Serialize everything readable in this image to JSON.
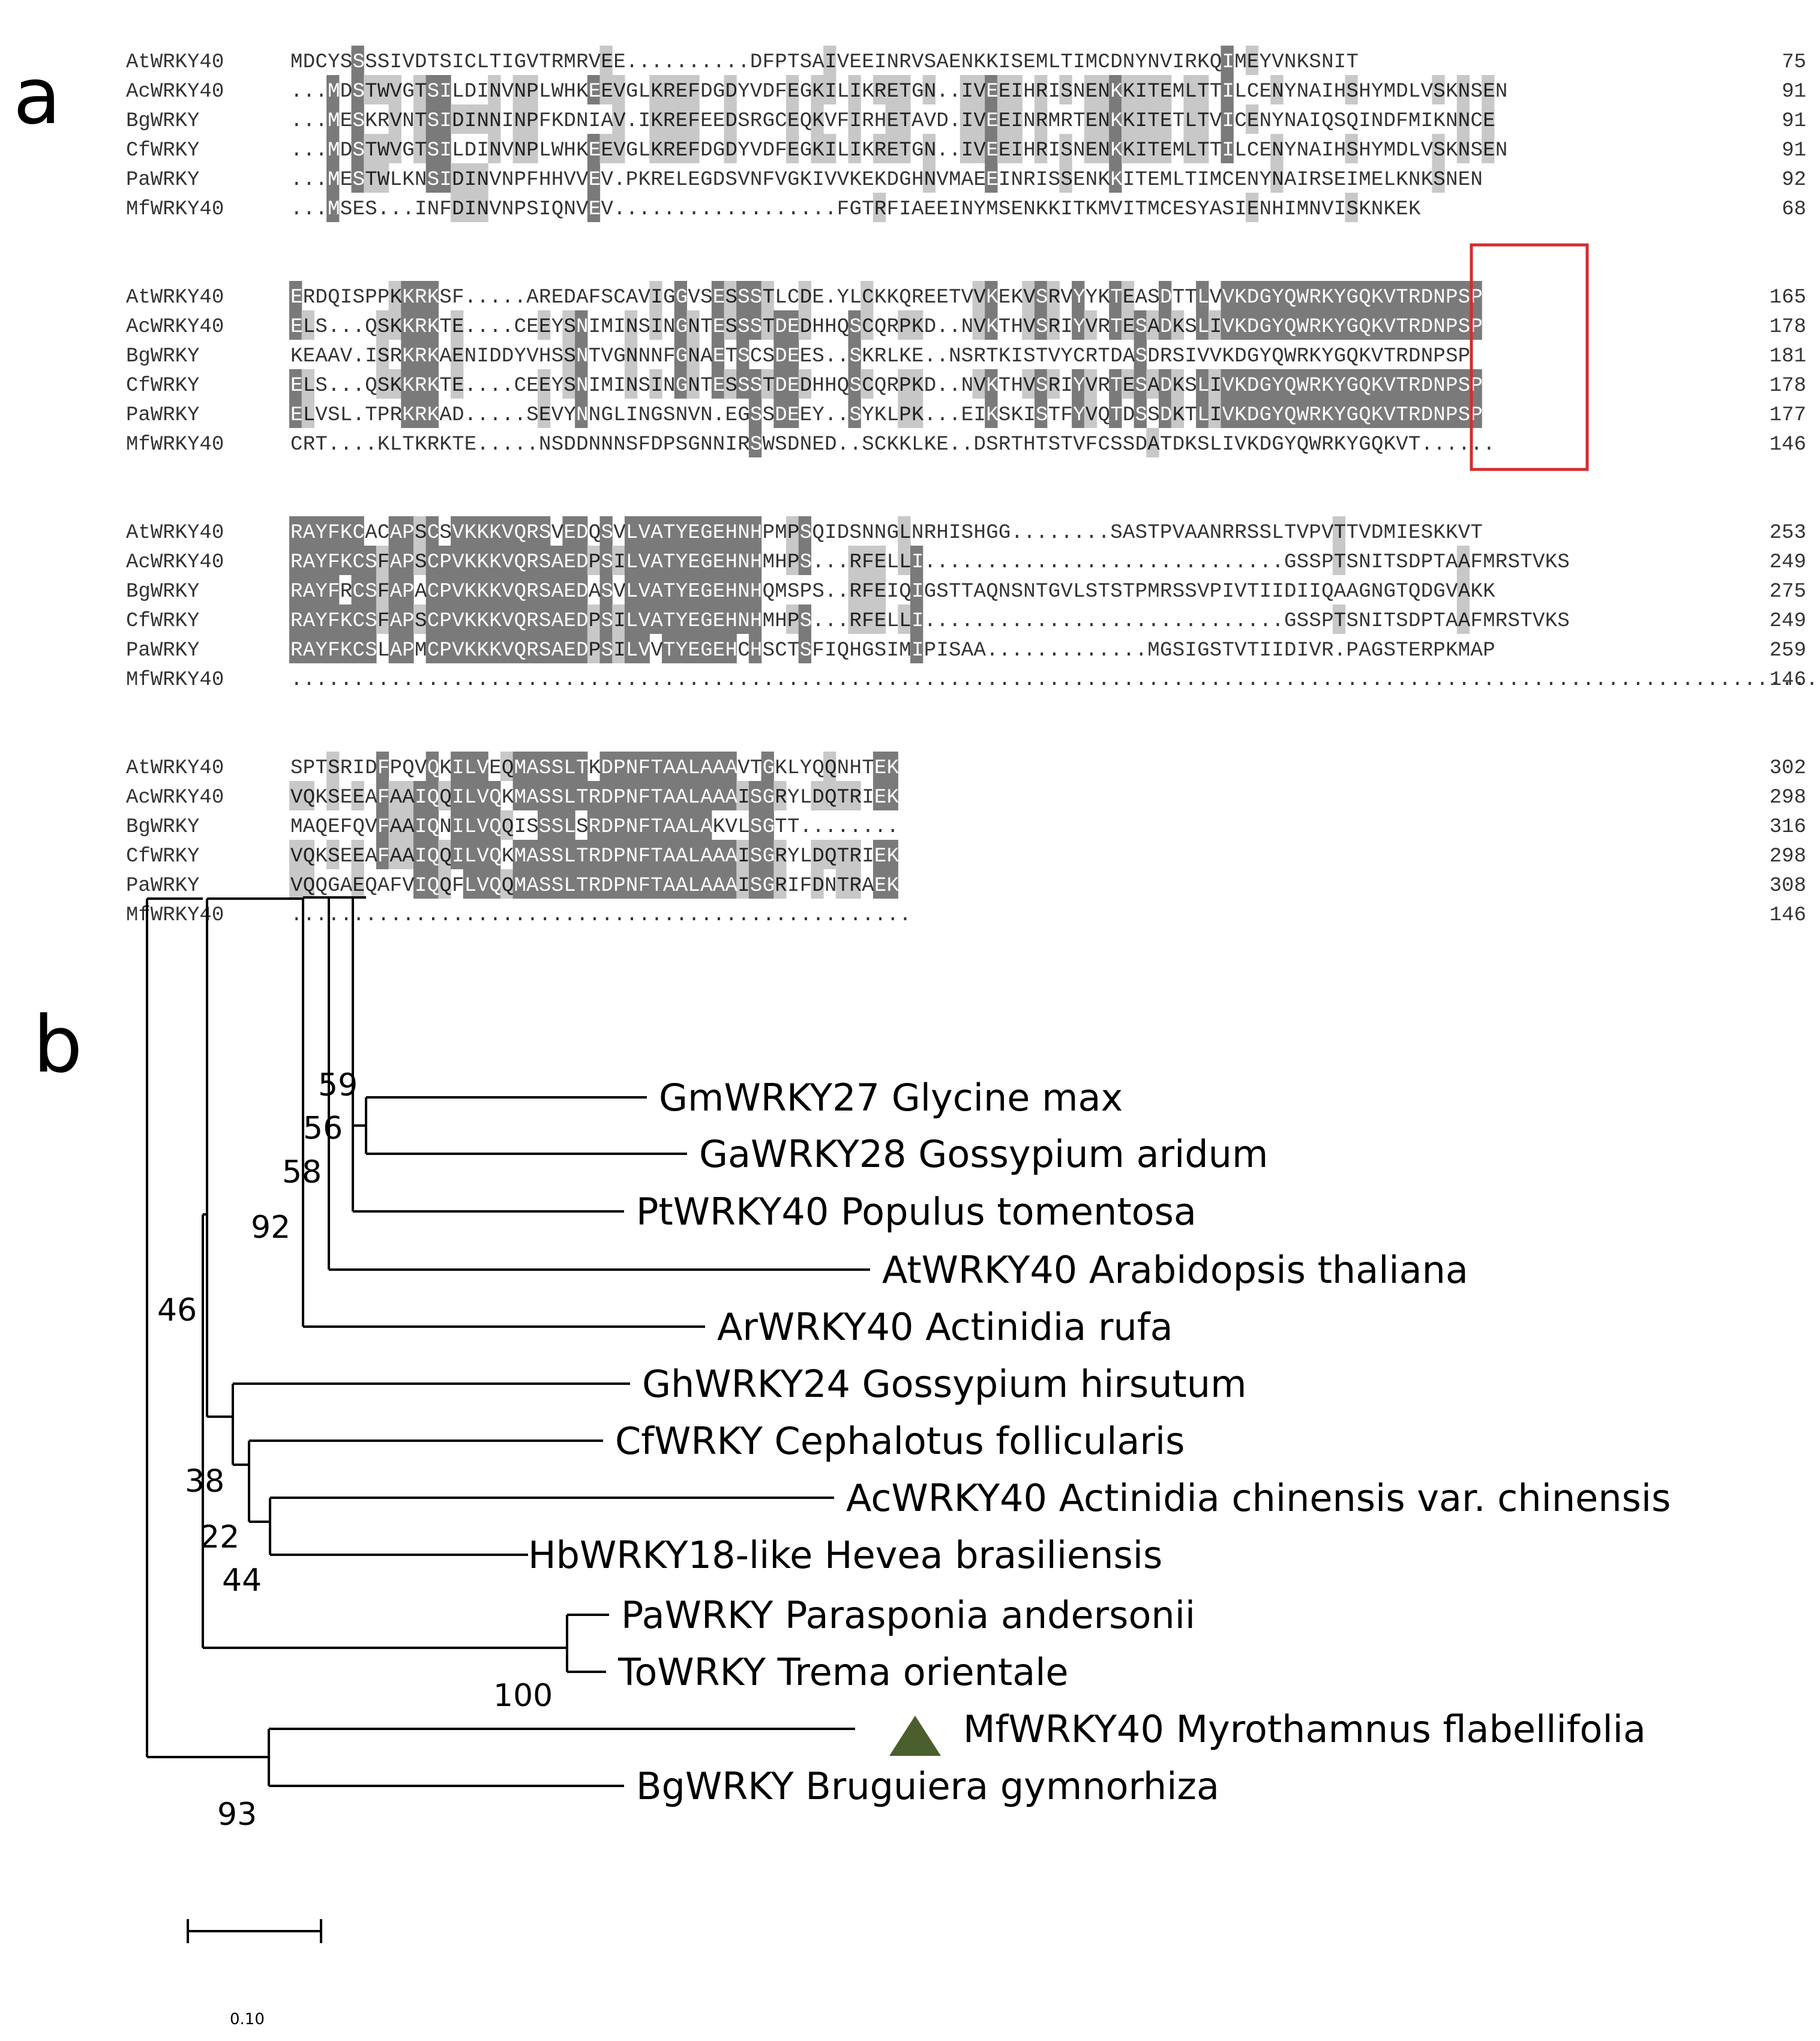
{
  "panel_a": {
    "label": "a",
    "blocks": [
      {
        "rows": [
          {
            "name": "AtWRKY40",
            "seq": "MDCYSSSSIVDTSICLTIGVTRMRVEE..........DFPTSAIVEEINRVSAENKKISEMLTIMCDNYNVIRKQIMEYVNKSNIT",
            "num": "75"
          },
          {
            "name": "AcWRKY40",
            "seq": "...MDSTWVGTSILDINVNPLWHKEEVGLKREFDGDYVDFEGKILIKRETGN..IVEEIHRISNENKKITEMLTTILCENYNAIHSHYMDLVSKNSEN",
            "num": "91"
          },
          {
            "name": "BgWRKY",
            "seq": "...MESKRVNTSIDINNINPFKDNIAV.IKREFEEDSRGCEQKVFIRHETAVD.IVEEINRMRTENKKITETLTVICENYNAIQSQINDFMIKNNCE",
            "num": "91"
          },
          {
            "name": "CfWRKY",
            "seq": "...MDSTWVGTSILDINVNPLWHKEEVGLKREFDGDYVDFEGKILIKRETGN..IVEEIHRISNENKKITEMLTTILCENYNAIHSHYMDLVSKNSEN",
            "num": "91"
          },
          {
            "name": "PaWRKY",
            "seq": "...MESTWLKNSIDINVNPFHHVVEV.PKRELEGDSVNFVGKIVVKEKDGHNVMAEEINRISSENKKITEMLTIMCENYNAIRSEIMELKNKSNEN",
            "num": "92"
          },
          {
            "name": "MfWRKY40",
            "seq": "...MSES...INFDINVNPSIQNVEV..................FGTRFIAEEINYMSENKKITKMVITMCESYASIENHIMNVISKNKEK",
            "num": "68"
          }
        ]
      },
      {
        "rows": [
          {
            "name": "AtWRKY40",
            "seq": "ERDQISPPKKRKSF.....AREDAFSCAVIGGVSESSSTLCDE.YLCKKQREETVVKEKVSRVYYKTEASDTTLVVKDGYQWRKYGQKVTRDNPSP",
            "num": "165"
          },
          {
            "name": "AcWRKY40",
            "seq": "ELS...QSKKRKTE....CEEYSNIMINSINGNTESSSTDEDHHQSCQRPKD..NVKTHVSRIYVRTESADKSLIVKDGYQWRKYGQKVTRDNPSP",
            "num": "178"
          },
          {
            "name": "BgWRKY",
            "seq": "KEAAV.ISRKRKAENIDDYVHSSNTVGNNNFGNAETSCSDEES..SKRLKE..NSRTKISTVYCRTDASDRSIVVKDGYQWRKYGQKVTRDNPSP",
            "num": "181"
          },
          {
            "name": "CfWRKY",
            "seq": "ELS...QSKKRKTE....CEEYSNIMINSINGNTESSSTDEDHHQSCQRPKD..NVKTHVSRIYVRTESADKSLIVKDGYQWRKYGQKVTRDNPSP",
            "num": "178"
          },
          {
            "name": "PaWRKY",
            "seq": "ELVSL.TPRKRKAD.....SEVYNNGLINGSNVN.EGSSDEEY..SYKLPK...EIKSKISTFYVQTDSSDKTLIVKDGYQWRKYGQKVTRDNPSP",
            "num": "177"
          },
          {
            "name": "MfWRKY40",
            "seq": "CRT....KLTKRKTE.....NSDDNNNSFDPSGNNIRSWSDNED..SCKKLKE..DSRTHTSTVFCSSDATDKSLIVKDGYQWRKYGQKVT......",
            "num": "146"
          }
        ]
      },
      {
        "rows": [
          {
            "name": "AtWRKY40",
            "seq": "RAYFKCACAPSCSVKKKVQRSVEDQSVLVATYEGEHNHPMPSQIDSNNGLNRHISHGG........SASTPVAANRRSSLTVPVTTVDMIESKKVT",
            "num": "253"
          },
          {
            "name": "AcWRKY40",
            "seq": "RAYFKCSFAPSCPVKKKVQRSAEDPSILVATYEGEHNHMHPS...RFELLI.............................GSSPTSNITSDPTAAFMRSTVKS",
            "num": "249"
          },
          {
            "name": "BgWRKY",
            "seq": "RAYFRCSFAPACPVKKKVQRSAEDASVLVATYEGEHNHQMSPS..RFEIQIGSTTAQNSNTGVLSTSTPMRSSVPIVTIIDIIQAAGNGTQDGVAKK",
            "num": "275"
          },
          {
            "name": "CfWRKY",
            "seq": "RAYFKCSFAPSCPVKKKVQRSAEDPSILVATYEGEHNHMHPS...RFELLI.............................GSSPTSNITSDPTAAFMRSTVKS",
            "num": "249"
          },
          {
            "name": "PaWRKY",
            "seq": "RAYFKCSLAPMCPVKKKVQRSAEDPSILVVTYEGEHCHSCTSFIQHGSIMIPISAA.............MGSIGSTVTIIDIVR.PAGSTERPKMAP",
            "num": "259"
          },
          {
            "name": "MfWRKY40",
            "seq": "............................................................................................................................",
            "num": "146"
          }
        ]
      },
      {
        "rows": [
          {
            "name": "AtWRKY40",
            "seq": "SPTSRIDFPQVQKILVEQMASSLTKDPNFTAALAAAVTGKLYQQNHTEK",
            "num": "302"
          },
          {
            "name": "AcWRKY40",
            "seq": "VQKSEEAFAAIQQILVQKMASSLTRDPNFTAALAAAISGRYLDQTRIEK",
            "num": "298"
          },
          {
            "name": "BgWRKY",
            "seq": "MAQEFQVFAAIQNILVQQISSSLSRDPNFTAALAKVLSGTT........",
            "num": "316"
          },
          {
            "name": "CfWRKY",
            "seq": "VQKSEEAFAAIQQILVQKMASSLTRDPNFTAALAAAISGRYLDQTRIEK",
            "num": "298"
          },
          {
            "name": "PaWRKY",
            "seq": "VQQGAEQAFVIQQFLVQQMASSLTRDPNFTAALAAAISGRIFDNTRAEK",
            "num": "308"
          },
          {
            "name": "MfWRKY40",
            "seq": "..................................................",
            "num": "146"
          }
        ]
      }
    ]
  },
  "panel_b": {
    "label": "b",
    "leaves": [
      "GmWRKY27 Glycine max",
      "GaWRKY28 Gossypium aridum",
      "PtWRKY40 Populus tomentosa",
      "AtWRKY40 Arabidopsis thaliana",
      "ArWRKY40 Actinidia rufa",
      "GhWRKY24 Gossypium hirsutum",
      "CfWRKY Cephalotus follicularis",
      "AcWRKY40 Actinidia chinensis var. chinensis",
      "HbWRKY18-like Hevea brasiliensis",
      "PaWRKY Parasponia andersonii",
      "ToWRKY Trema orientale",
      "MfWRKY40 Myrothamnus flabellifolia",
      "BgWRKY Bruguiera gymnorhiza"
    ],
    "bootstraps": [
      "59",
      "56",
      "58",
      "92",
      "46",
      "38",
      "22",
      "44",
      "100",
      "93"
    ],
    "scale_label": "0.10",
    "marker_color": "#4b5e2e"
  }
}
